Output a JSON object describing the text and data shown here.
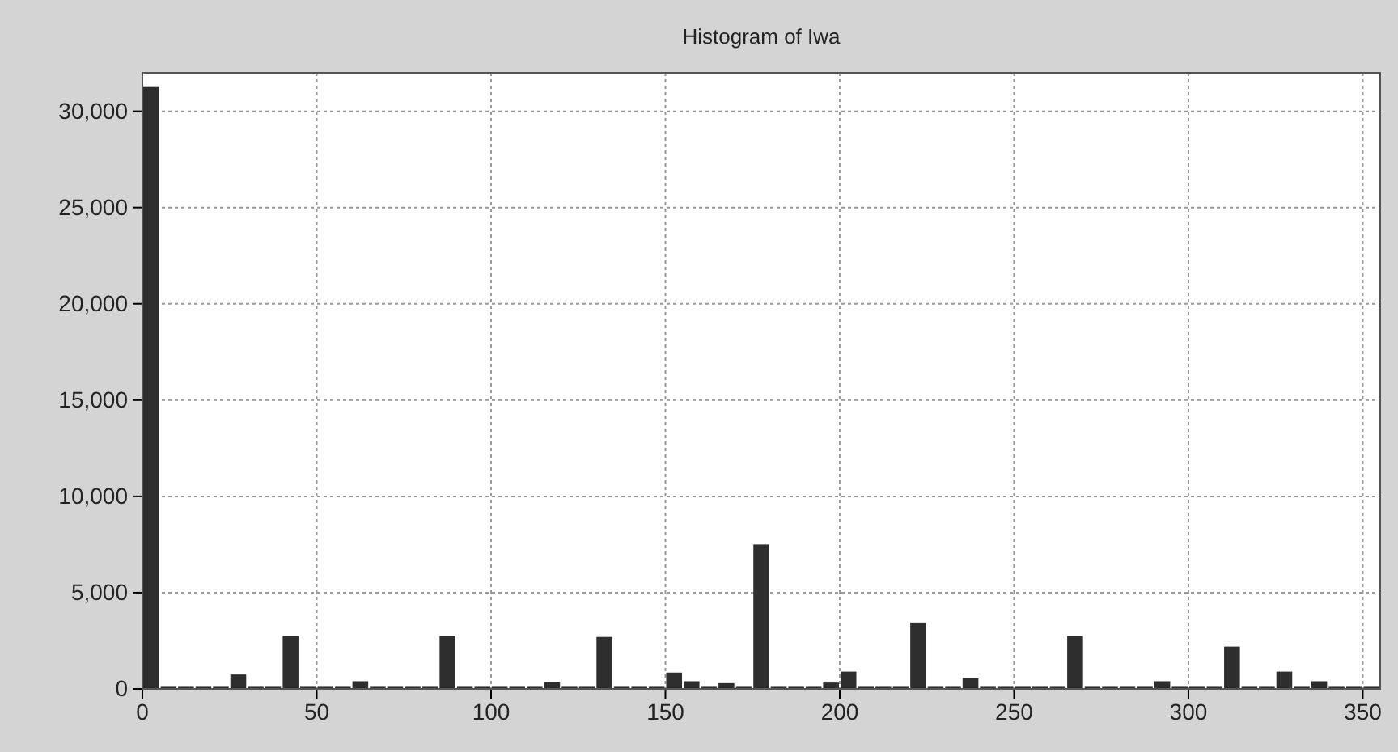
{
  "chart_data": {
    "type": "histogram",
    "title": "Histogram of Iwa",
    "bins": [
      0,
      5,
      10,
      15,
      20,
      25,
      30,
      35,
      40,
      45,
      50,
      55,
      60,
      65,
      70,
      75,
      80,
      85,
      90,
      95,
      100,
      105,
      110,
      115,
      120,
      125,
      130,
      135,
      140,
      145,
      150,
      155,
      160,
      165,
      170,
      175,
      180,
      185,
      190,
      195,
      200,
      205,
      210,
      215,
      220,
      225,
      230,
      235,
      240,
      245,
      250,
      255,
      260,
      265,
      270,
      275,
      280,
      285,
      290,
      295,
      300,
      305,
      310,
      315,
      320,
      325,
      330,
      335,
      340,
      345,
      350,
      355
    ],
    "values": [
      31300,
      150,
      150,
      150,
      150,
      750,
      150,
      150,
      2750,
      150,
      150,
      150,
      400,
      150,
      150,
      150,
      150,
      2750,
      150,
      150,
      150,
      150,
      150,
      350,
      150,
      150,
      2700,
      150,
      150,
      150,
      850,
      400,
      150,
      300,
      150,
      7500,
      150,
      150,
      150,
      330,
      900,
      150,
      150,
      150,
      3450,
      150,
      150,
      550,
      150,
      150,
      150,
      150,
      150,
      2750,
      150,
      150,
      150,
      150,
      400,
      150,
      150,
      150,
      2200,
      150,
      150,
      900,
      150,
      400,
      150,
      150,
      150
    ],
    "color": "#2e2e2e",
    "xlim": [
      0,
      355
    ],
    "xticks": [
      0,
      50,
      100,
      150,
      200,
      250,
      300,
      350
    ],
    "ylim": [
      0,
      32000
    ],
    "yticks": [
      {
        "value": 0,
        "label": "0"
      },
      {
        "value": 5000,
        "label": "5,000"
      },
      {
        "value": 10000,
        "label": "10,000"
      },
      {
        "value": 15000,
        "label": "15,000"
      },
      {
        "value": 20000,
        "label": "20,000"
      },
      {
        "value": 25000,
        "label": "25,000"
      },
      {
        "value": 30000,
        "label": "30,000"
      }
    ],
    "grid": true
  }
}
